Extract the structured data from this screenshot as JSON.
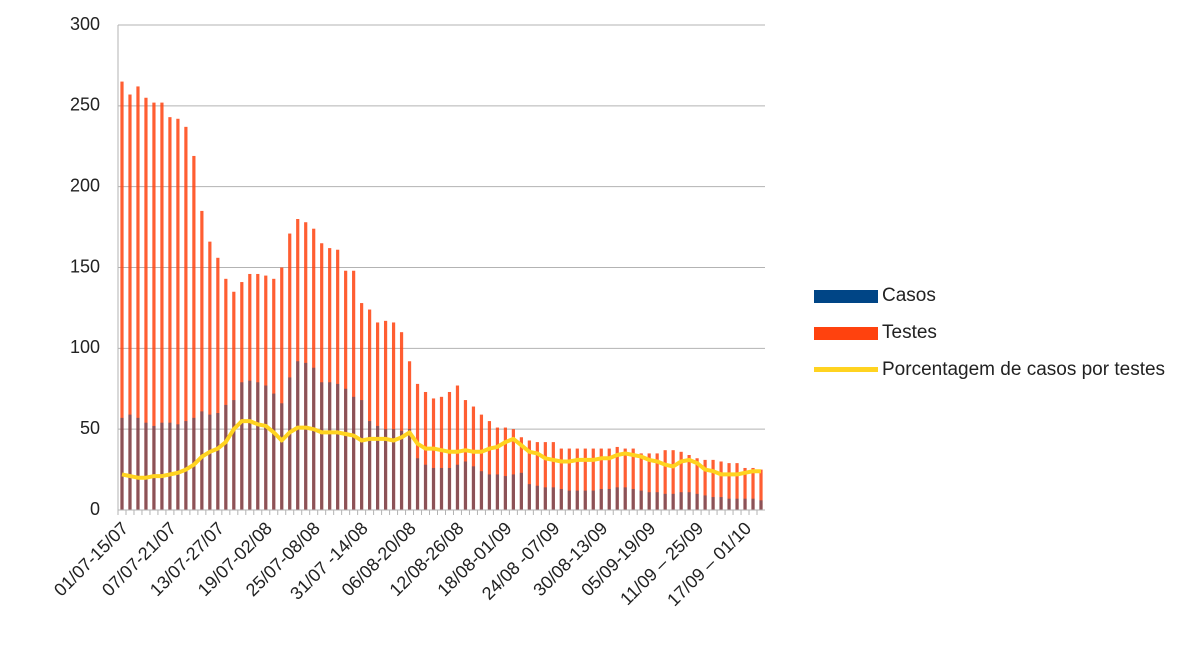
{
  "chart_data": {
    "type": "bar",
    "categories": [
      "01/07-15/07",
      null,
      null,
      null,
      null,
      null,
      "07/07-21/07",
      null,
      null,
      null,
      null,
      null,
      "13/07-27/07",
      null,
      null,
      null,
      null,
      null,
      "19/07-02/08",
      null,
      null,
      null,
      null,
      null,
      "25/07-08/08",
      null,
      null,
      null,
      null,
      null,
      "31/07 -14/08",
      null,
      null,
      null,
      null,
      null,
      "06/08-20/08",
      null,
      null,
      null,
      null,
      null,
      "12/08-26/08",
      null,
      null,
      null,
      null,
      null,
      "18/08-01/09",
      null,
      null,
      null,
      null,
      null,
      "24/08 -07/09",
      null,
      null,
      null,
      null,
      null,
      "30/08-13/09",
      null,
      null,
      null,
      null,
      null,
      "05/09-19/09",
      null,
      null,
      null,
      null,
      null,
      "11/09 – 25/09",
      null,
      null,
      null,
      null,
      null,
      "17/09 – 01/10",
      null,
      null
    ],
    "series": [
      {
        "name": "Casos",
        "color": "#004586",
        "values": [
          57,
          59,
          57,
          54,
          52,
          54,
          54,
          53,
          55,
          57,
          61,
          59,
          60,
          65,
          68,
          79,
          80,
          79,
          77,
          72,
          66,
          82,
          92,
          91,
          88,
          79,
          79,
          78,
          75,
          70,
          68,
          55,
          52,
          50,
          50,
          49,
          50,
          32,
          28,
          26,
          26,
          26,
          28,
          30,
          27,
          24,
          22,
          22,
          21,
          22,
          23,
          16,
          15,
          14,
          14,
          13,
          12,
          12,
          12,
          12,
          13,
          13,
          14,
          14,
          13,
          12,
          11,
          11,
          10,
          10,
          11,
          11,
          10,
          9,
          8,
          8,
          7,
          7,
          7,
          7,
          6
        ]
      },
      {
        "name": "Testes",
        "color": "#ff420e",
        "values": [
          265,
          257,
          262,
          255,
          252,
          252,
          243,
          242,
          237,
          219,
          185,
          166,
          156,
          143,
          135,
          141,
          146,
          146,
          145,
          143,
          150,
          171,
          180,
          178,
          174,
          165,
          162,
          161,
          148,
          148,
          128,
          124,
          116,
          117,
          116,
          110,
          92,
          78,
          73,
          69,
          70,
          73,
          77,
          68,
          64,
          59,
          55,
          51,
          51,
          50,
          45,
          43,
          42,
          42,
          42,
          38,
          38,
          38,
          38,
          38,
          38,
          38,
          39,
          38,
          38,
          35,
          35,
          35,
          37,
          37,
          36,
          34,
          32,
          31,
          31,
          30,
          29,
          29,
          26,
          26,
          25
        ]
      },
      {
        "name": "Porcentagem de casos por testes",
        "type": "line",
        "color": "#ffd320",
        "values": [
          22,
          21,
          20,
          20,
          21,
          21,
          22,
          23,
          25,
          28,
          33,
          36,
          38,
          42,
          50,
          55,
          55,
          53,
          52,
          48,
          43,
          48,
          51,
          51,
          50,
          48,
          48,
          48,
          47,
          46,
          43,
          44,
          44,
          44,
          43,
          45,
          48,
          41,
          38,
          38,
          37,
          36,
          36,
          37,
          36,
          36,
          38,
          39,
          42,
          44,
          40,
          36,
          35,
          32,
          31,
          30,
          30,
          31,
          31,
          31,
          32,
          32,
          34,
          35,
          34,
          33,
          31,
          30,
          28,
          27,
          30,
          31,
          29,
          25,
          24,
          22,
          22,
          22,
          23,
          24,
          24
        ]
      }
    ],
    "ylim": [
      0,
      300
    ],
    "yticks": [
      0,
      50,
      100,
      150,
      200,
      250,
      300
    ],
    "grid": true,
    "legend": "right"
  }
}
